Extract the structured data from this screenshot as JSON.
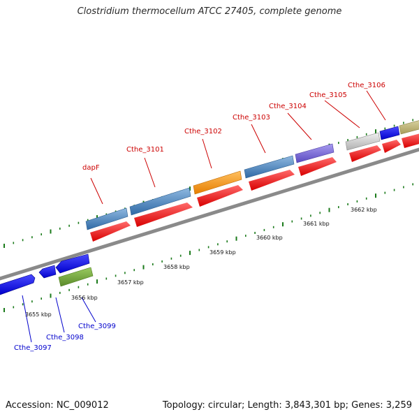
{
  "title": "Clostridium thermocellum ATCC 27405, complete genome",
  "footer": {
    "accession": "Accession: NC_009012",
    "summary": "Topology: circular; Length: 3,843,301 bp; Genes: 3,259"
  },
  "colors": {
    "forward_label": "#cc0000",
    "reverse_label": "#0000cc",
    "backbone": "#8a8a8a",
    "tick": "#1a7a1a",
    "cds": "#ff0000",
    "tick_label": "#111111"
  },
  "tick_labels": [
    "3655 kbp",
    "3656 kbp",
    "3657 kbp",
    "3658 kbp",
    "3659 kbp",
    "3660 kbp",
    "3661 kbp",
    "3662 kbp"
  ],
  "forward_labels": [
    {
      "name": "dapF",
      "gene": "dapF"
    },
    {
      "name": "cthe-3101",
      "gene": "Cthe_3101"
    },
    {
      "name": "cthe-3102",
      "gene": "Cthe_3102"
    },
    {
      "name": "cthe-3103",
      "gene": "Cthe_3103"
    },
    {
      "name": "cthe-3104",
      "gene": "Cthe_3104"
    },
    {
      "name": "cthe-3105",
      "gene": "Cthe_3105"
    },
    {
      "name": "cthe-3106",
      "gene": "Cthe_3106"
    }
  ],
  "reverse_labels": [
    {
      "name": "cthe-3097",
      "gene": "Cthe_3097"
    },
    {
      "name": "cthe-3098",
      "gene": "Cthe_3098"
    },
    {
      "name": "cthe-3099",
      "gene": "Cthe_3099"
    }
  ]
}
